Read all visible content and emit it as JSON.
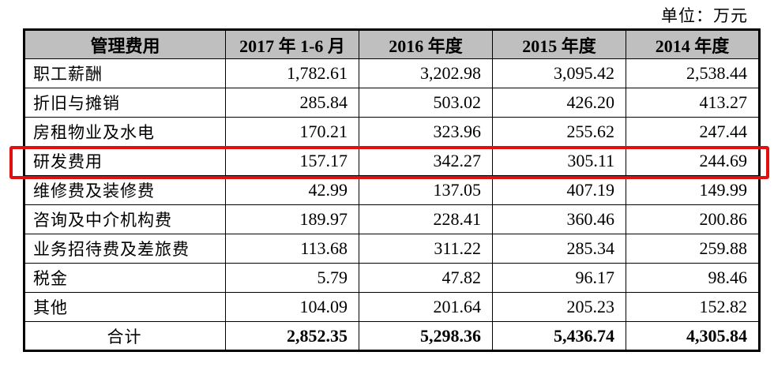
{
  "unit_label": "单位：万元",
  "headers": [
    "管理费用",
    "2017 年 1-6 月",
    "2016 年度",
    "2015 年度",
    "2014 年度"
  ],
  "rows": [
    {
      "label": "职工薪酬",
      "values": [
        "1,782.61",
        "3,202.98",
        "3,095.42",
        "2,538.44"
      ]
    },
    {
      "label": "折旧与摊销",
      "values": [
        "285.84",
        "503.02",
        "426.20",
        "413.27"
      ]
    },
    {
      "label": "房租物业及水电",
      "values": [
        "170.21",
        "323.96",
        "255.62",
        "247.44"
      ]
    },
    {
      "label": "研发费用",
      "values": [
        "157.17",
        "342.27",
        "305.11",
        "244.69"
      ]
    },
    {
      "label": "维修费及装修费",
      "values": [
        "42.99",
        "137.05",
        "407.19",
        "149.99"
      ]
    },
    {
      "label": "咨询及中介机构费",
      "values": [
        "189.97",
        "228.41",
        "360.46",
        "200.86"
      ]
    },
    {
      "label": "业务招待费及差旅费",
      "values": [
        "113.68",
        "311.22",
        "285.34",
        "259.88"
      ]
    },
    {
      "label": "税金",
      "values": [
        "5.79",
        "47.82",
        "96.17",
        "98.46"
      ]
    },
    {
      "label": "其他",
      "values": [
        "104.09",
        "201.64",
        "205.23",
        "152.82"
      ]
    }
  ],
  "total": {
    "label": "合计",
    "values": [
      "2,852.35",
      "5,298.36",
      "5,436.74",
      "4,305.84"
    ]
  },
  "highlight_color": "#e01010"
}
